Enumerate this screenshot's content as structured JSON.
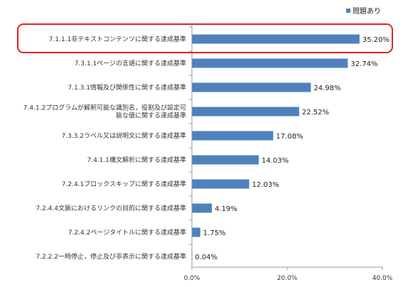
{
  "chart_data": {
    "type": "bar",
    "orientation": "horizontal",
    "categories": [
      [
        "7.1.1.1非テキストコンテンツに関する達成基準"
      ],
      [
        "7.3.1.1ページの言語に関する達成基準"
      ],
      [
        "7.1.3.1情報及び関係性に関する達成基準"
      ],
      [
        "7.4.1.2プログラムが解釈可能な識別名，役割及び設定可",
        "能な値に関する達成基準"
      ],
      [
        "7.3.3.2ラベル又は説明文に関する達成基準"
      ],
      [
        "7.4.1.1構文解析に関する達成基準"
      ],
      [
        "7.2.4.1ブロックスキップに関する達成基準"
      ],
      [
        "7.2.4.4文脈におけるリンクの目的に関する達成基準"
      ],
      [
        "7.2.4.2ページタイトルに関する達成基準"
      ],
      [
        "7.2.2.2一時停止，停止及び非表示に関する達成基準"
      ]
    ],
    "series": [
      {
        "name": "問題あり",
        "values": [
          35.2,
          32.74,
          24.98,
          22.52,
          17.08,
          14.03,
          12.03,
          4.19,
          1.75,
          0.04
        ],
        "value_labels": [
          "35.20%",
          "32.74%",
          "24.98%",
          "22.52%",
          "17.08%",
          "14.03%",
          "12.03%",
          "4.19%",
          "1.75%",
          "0.04%"
        ]
      }
    ],
    "xlim": [
      0,
      40
    ],
    "xticks": [
      0,
      20,
      40
    ],
    "xtick_labels": [
      "0.0%",
      "20.0%",
      "40.0%"
    ],
    "legend_position": "top-right",
    "highlighted_category": 0,
    "colors": {
      "bar": "#4F81BD",
      "highlight": "#E52222",
      "axis": "#9a9a9a"
    }
  }
}
